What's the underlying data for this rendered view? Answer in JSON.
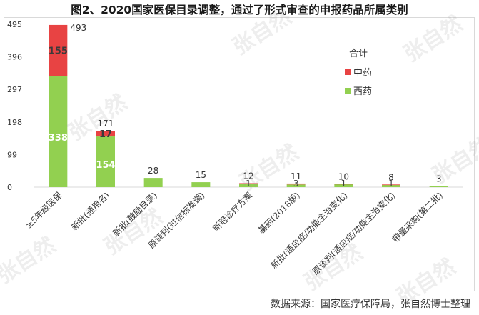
{
  "title": "图2、2020国家医保目录调整，通过了形式审查的申报药品所属类别",
  "source": "数据来源：国家医疗保障局，张自然博士整理",
  "watermark": "张自然",
  "colors": {
    "xiyao": "#92d050",
    "zhongyao": "#e84343",
    "axis": "#d9d9d9",
    "text": "#333333",
    "inside_label": "#ffffff",
    "inside_label_dark": "#404040"
  },
  "chart_data": {
    "type": "bar",
    "stacked": true,
    "categories": [
      "≥5年级医保",
      "新批(通用名)",
      "新批(鼓励目录)",
      "原谈判(过信标准调)",
      "新冠诊疗方案",
      "基药(2018版)",
      "新批(适应症/功能主治变化)",
      "原谈判(适应症/功能主治变化)",
      "带量采购(第二批)"
    ],
    "series": [
      {
        "name": "西药",
        "values": [
          338,
          154,
          28,
          15,
          11,
          8,
          9,
          7,
          3
        ]
      },
      {
        "name": "中药",
        "values": [
          155,
          17,
          0,
          0,
          1,
          3,
          1,
          1,
          0
        ]
      }
    ],
    "totals": [
      493,
      171,
      28,
      15,
      12,
      11,
      10,
      8,
      3
    ],
    "segment_labels": {
      "西药": [
        "338",
        "154",
        "",
        "",
        "",
        "",
        "",
        "",
        ""
      ],
      "中药": [
        "155",
        "17",
        "",
        "",
        "1",
        "3",
        "1",
        "1",
        ""
      ]
    },
    "yticks": [
      0,
      99,
      198,
      297,
      396,
      495
    ],
    "ylim": [
      0,
      495
    ],
    "legend_title": "合计",
    "legend_position": "right",
    "grid": false
  }
}
